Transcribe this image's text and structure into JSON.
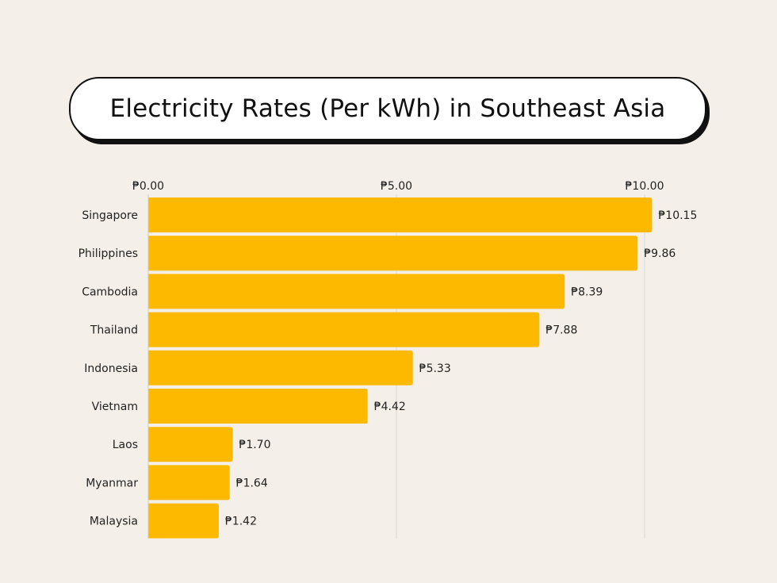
{
  "chart_data": {
    "type": "bar",
    "orientation": "horizontal",
    "title": "Electricity Rates (Per kWh) in Southeast Asia",
    "categories": [
      "Singapore",
      "Philippines",
      "Cambodia",
      "Thailand",
      "Indonesia",
      "Vietnam",
      "Laos",
      "Myanmar",
      "Malaysia"
    ],
    "values": [
      10.15,
      9.86,
      8.39,
      7.88,
      5.33,
      4.42,
      1.7,
      1.64,
      1.42
    ],
    "data_labels": [
      "₱10.15",
      "₱9.86",
      "₱8.39",
      "₱7.88",
      "₱5.33",
      "₱4.42",
      "₱1.70",
      "₱1.64",
      "₱1.42"
    ],
    "xticks": [
      0,
      5,
      10
    ],
    "xtick_labels": [
      "₱0.00",
      "₱5.00",
      "₱10.00"
    ],
    "xaxis_position": "top",
    "xlim": [
      0,
      10.15
    ],
    "grid": true,
    "bar_color": "#FDB900",
    "background": "#f4f0e9"
  }
}
